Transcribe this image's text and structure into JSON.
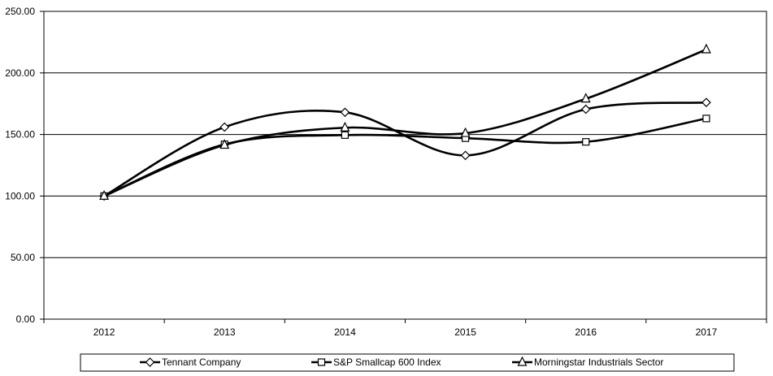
{
  "chart_data": {
    "type": "line",
    "categories": [
      "2012",
      "2013",
      "2014",
      "2015",
      "2016",
      "2017"
    ],
    "series": [
      {
        "name": "Tennant Company",
        "marker": "diamond",
        "values": [
          100.0,
          156.0,
          168.0,
          133.0,
          170.5,
          176.0
        ]
      },
      {
        "name": "S&P Smallcap 600 Index",
        "marker": "square",
        "values": [
          100.0,
          142.0,
          149.5,
          147.0,
          144.0,
          163.0
        ]
      },
      {
        "name": "Morningstar Industrials Sector",
        "marker": "triangle",
        "values": [
          100.0,
          141.5,
          155.5,
          151.0,
          179.0,
          219.0
        ]
      }
    ],
    "y_ticks": [
      "0.00",
      "50.00",
      "100.00",
      "150.00",
      "200.00",
      "250.00"
    ],
    "ylim": [
      0,
      250
    ],
    "grid": true,
    "legend_position": "bottom",
    "smooth": true,
    "line_color": "#000000"
  }
}
